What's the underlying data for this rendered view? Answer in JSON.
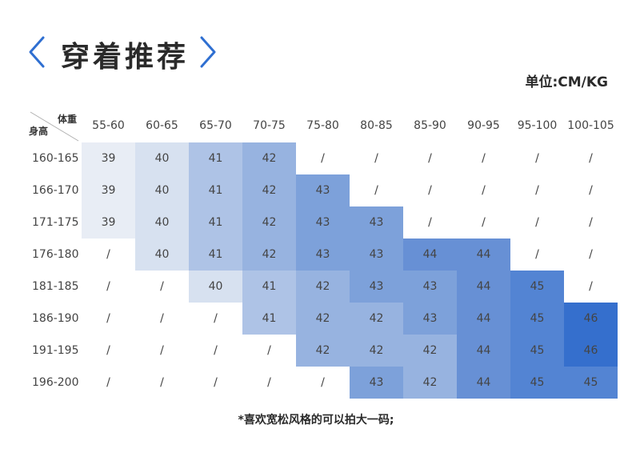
{
  "header": {
    "title": "穿着推荐",
    "unit_label": "单位:CM/KG",
    "accent": "#2f6fd1"
  },
  "table": {
    "corner_weight_label": "体重",
    "corner_height_label": "身高",
    "columns": [
      "55-60",
      "60-65",
      "65-70",
      "70-75",
      "75-80",
      "80-85",
      "85-90",
      "90-95",
      "95-100",
      "100-105"
    ],
    "rows": [
      {
        "label": "160-165",
        "cells": [
          "39",
          "40",
          "41",
          "42",
          "/",
          "/",
          "/",
          "/",
          "/",
          "/"
        ]
      },
      {
        "label": "166-170",
        "cells": [
          "39",
          "40",
          "41",
          "42",
          "43",
          "/",
          "/",
          "/",
          "/",
          "/"
        ]
      },
      {
        "label": "171-175",
        "cells": [
          "39",
          "40",
          "41",
          "42",
          "43",
          "43",
          "/",
          "/",
          "/",
          "/"
        ]
      },
      {
        "label": "176-180",
        "cells": [
          "/",
          "40",
          "41",
          "42",
          "43",
          "43",
          "44",
          "44",
          "/",
          "/"
        ]
      },
      {
        "label": "181-185",
        "cells": [
          "/",
          "/",
          "40",
          "41",
          "42",
          "43",
          "43",
          "44",
          "45",
          "/"
        ]
      },
      {
        "label": "186-190",
        "cells": [
          "/",
          "/",
          "/",
          "41",
          "42",
          "42",
          "43",
          "44",
          "45",
          "46"
        ]
      },
      {
        "label": "191-195",
        "cells": [
          "/",
          "/",
          "/",
          "/",
          "42",
          "42",
          "42",
          "44",
          "45",
          "46"
        ]
      },
      {
        "label": "196-200",
        "cells": [
          "/",
          "/",
          "/",
          "/",
          "/",
          "43",
          "42",
          "44",
          "45",
          "45"
        ]
      }
    ],
    "size_colors": {
      "39": "#e8edf5",
      "40": "#d7e1f0",
      "41": "#aec3e6",
      "42": "#97b3e0",
      "43": "#7da1da",
      "44": "#6790d5",
      "45": "#5384d3",
      "46": "#356fcd"
    }
  },
  "footnote": "*喜欢宽松风格的可以拍大一码;"
}
